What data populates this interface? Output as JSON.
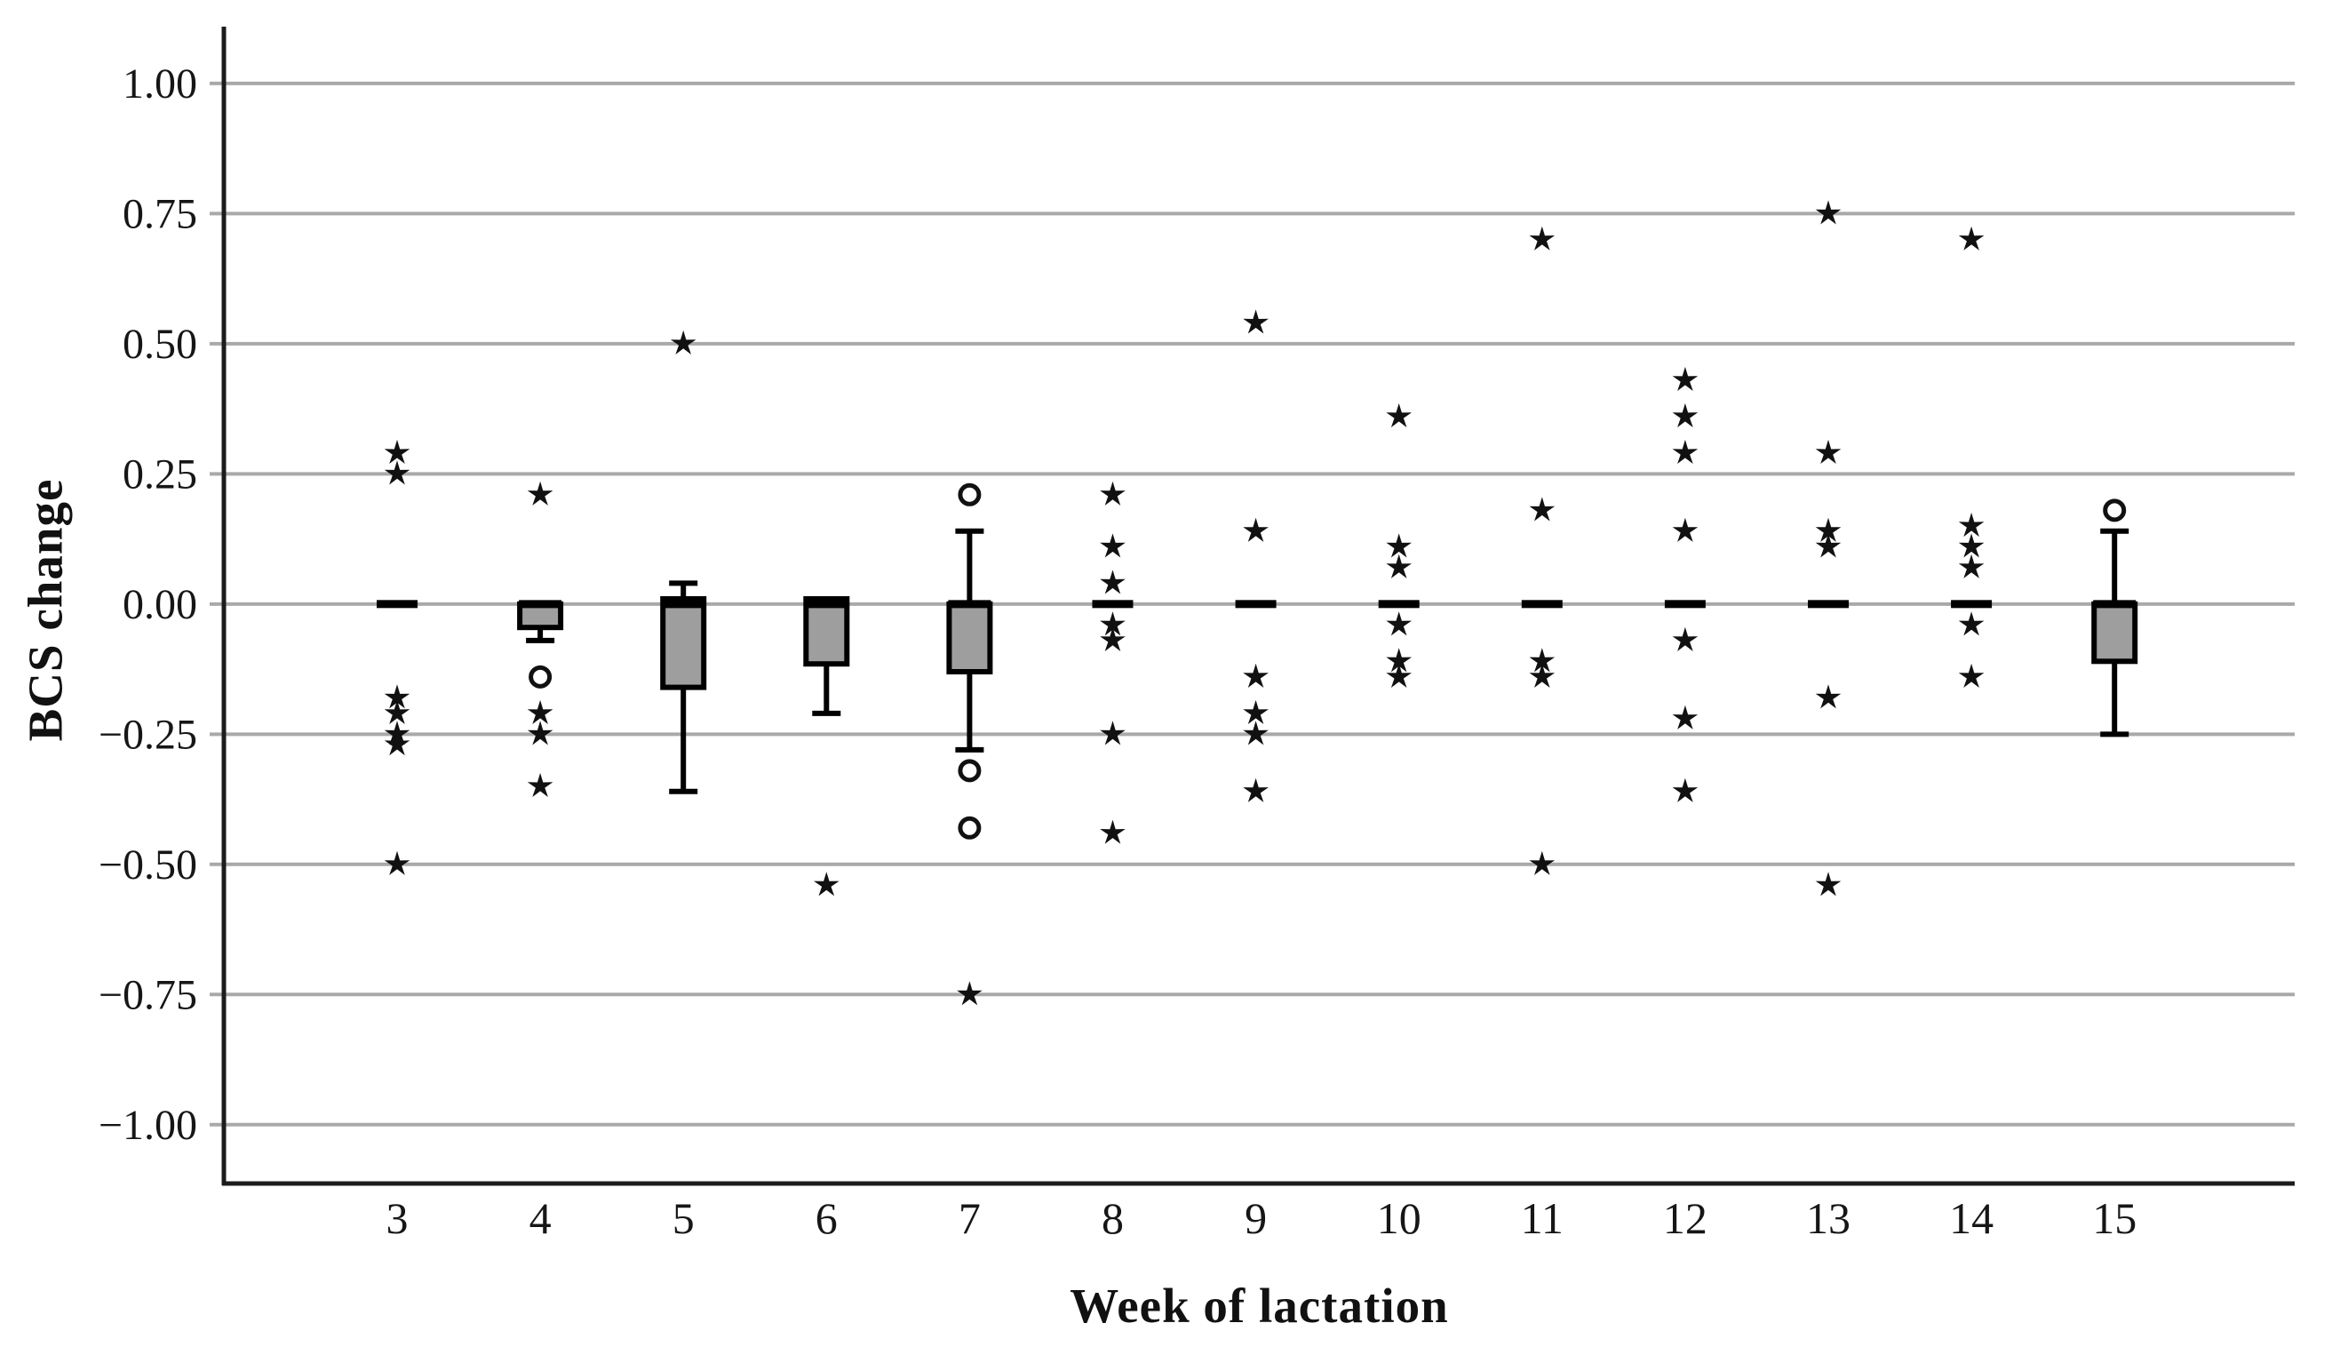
{
  "chart_data": {
    "type": "box",
    "title": "",
    "xlabel": "Week of lactation",
    "ylabel": "BCS change",
    "categories": [
      "3",
      "4",
      "5",
      "6",
      "7",
      "8",
      "9",
      "10",
      "11",
      "12",
      "13",
      "14",
      "15"
    ],
    "x_axis_weeks": [
      3,
      4,
      5,
      6,
      7,
      8,
      9,
      10,
      11,
      12,
      13,
      14,
      15
    ],
    "ylim": [
      -1.113,
      1.109
    ],
    "yticks": [
      {
        "value": 1.0,
        "label": "1.00"
      },
      {
        "value": 0.75,
        "label": "0.75"
      },
      {
        "value": 0.5,
        "label": "0.50"
      },
      {
        "value": 0.25,
        "label": "0.25"
      },
      {
        "value": 0.0,
        "label": "0.00"
      },
      {
        "value": -0.25,
        "label": "−0.25"
      },
      {
        "value": -0.5,
        "label": "−0.50"
      },
      {
        "value": -0.75,
        "label": "−0.75"
      },
      {
        "value": -1.0,
        "label": "−1.00"
      }
    ],
    "grid": true,
    "legend": "none",
    "boxes": [
      {
        "week": 3,
        "median": 0.0,
        "q1": 0.0,
        "q3": 0.0,
        "whisker_low": null,
        "whisker_high": null,
        "flat": true
      },
      {
        "week": 4,
        "median": 0.0,
        "q1": -0.045,
        "q3": 0.0,
        "whisker_low": -0.07,
        "whisker_high": null,
        "flat": false
      },
      {
        "week": 5,
        "median": 0.0,
        "q1": -0.16,
        "q3": 0.01,
        "whisker_low": -0.36,
        "whisker_high": 0.04,
        "flat": false
      },
      {
        "week": 6,
        "median": 0.0,
        "q1": -0.115,
        "q3": 0.01,
        "whisker_low": -0.21,
        "whisker_high": null,
        "flat": false
      },
      {
        "week": 7,
        "median": 0.0,
        "q1": -0.13,
        "q3": 0.0,
        "whisker_low": -0.28,
        "whisker_high": 0.14,
        "flat": false
      },
      {
        "week": 8,
        "median": 0.0,
        "q1": 0.0,
        "q3": 0.0,
        "whisker_low": null,
        "whisker_high": null,
        "flat": true
      },
      {
        "week": 9,
        "median": 0.0,
        "q1": 0.0,
        "q3": 0.0,
        "whisker_low": null,
        "whisker_high": null,
        "flat": true
      },
      {
        "week": 10,
        "median": 0.0,
        "q1": 0.0,
        "q3": 0.0,
        "whisker_low": null,
        "whisker_high": null,
        "flat": true
      },
      {
        "week": 11,
        "median": 0.0,
        "q1": 0.0,
        "q3": 0.0,
        "whisker_low": null,
        "whisker_high": null,
        "flat": true
      },
      {
        "week": 12,
        "median": 0.0,
        "q1": 0.0,
        "q3": 0.0,
        "whisker_low": null,
        "whisker_high": null,
        "flat": true
      },
      {
        "week": 13,
        "median": 0.0,
        "q1": 0.0,
        "q3": 0.0,
        "whisker_low": null,
        "whisker_high": null,
        "flat": true
      },
      {
        "week": 14,
        "median": 0.0,
        "q1": 0.0,
        "q3": 0.0,
        "whisker_low": null,
        "whisker_high": null,
        "flat": true
      },
      {
        "week": 15,
        "median": 0.0,
        "q1": -0.11,
        "q3": 0.0,
        "whisker_low": -0.25,
        "whisker_high": 0.14,
        "flat": false
      }
    ],
    "outliers": [
      {
        "week": 3,
        "value": 0.29,
        "marker": "asterisk"
      },
      {
        "week": 3,
        "value": 0.25,
        "marker": "asterisk"
      },
      {
        "week": 3,
        "value": -0.18,
        "marker": "asterisk"
      },
      {
        "week": 3,
        "value": -0.21,
        "marker": "asterisk"
      },
      {
        "week": 3,
        "value": -0.25,
        "marker": "asterisk"
      },
      {
        "week": 3,
        "value": -0.27,
        "marker": "asterisk"
      },
      {
        "week": 3,
        "value": -0.5,
        "marker": "asterisk"
      },
      {
        "week": 4,
        "value": 0.21,
        "marker": "asterisk"
      },
      {
        "week": 4,
        "value": -0.14,
        "marker": "circle"
      },
      {
        "week": 4,
        "value": -0.21,
        "marker": "asterisk"
      },
      {
        "week": 4,
        "value": -0.25,
        "marker": "asterisk"
      },
      {
        "week": 4,
        "value": -0.35,
        "marker": "asterisk"
      },
      {
        "week": 5,
        "value": 0.5,
        "marker": "asterisk"
      },
      {
        "week": 6,
        "value": -0.54,
        "marker": "asterisk"
      },
      {
        "week": 7,
        "value": 0.21,
        "marker": "circle"
      },
      {
        "week": 7,
        "value": -0.32,
        "marker": "circle"
      },
      {
        "week": 7,
        "value": -0.43,
        "marker": "circle"
      },
      {
        "week": 7,
        "value": -0.75,
        "marker": "asterisk"
      },
      {
        "week": 8,
        "value": 0.21,
        "marker": "asterisk"
      },
      {
        "week": 8,
        "value": 0.11,
        "marker": "asterisk"
      },
      {
        "week": 8,
        "value": 0.04,
        "marker": "asterisk"
      },
      {
        "week": 8,
        "value": -0.04,
        "marker": "asterisk"
      },
      {
        "week": 8,
        "value": -0.07,
        "marker": "asterisk"
      },
      {
        "week": 8,
        "value": -0.25,
        "marker": "asterisk"
      },
      {
        "week": 8,
        "value": -0.44,
        "marker": "asterisk"
      },
      {
        "week": 9,
        "value": 0.54,
        "marker": "asterisk"
      },
      {
        "week": 9,
        "value": 0.14,
        "marker": "asterisk"
      },
      {
        "week": 9,
        "value": -0.14,
        "marker": "asterisk"
      },
      {
        "week": 9,
        "value": -0.21,
        "marker": "asterisk"
      },
      {
        "week": 9,
        "value": -0.25,
        "marker": "asterisk"
      },
      {
        "week": 9,
        "value": -0.36,
        "marker": "asterisk"
      },
      {
        "week": 10,
        "value": 0.36,
        "marker": "asterisk"
      },
      {
        "week": 10,
        "value": 0.11,
        "marker": "asterisk"
      },
      {
        "week": 10,
        "value": 0.07,
        "marker": "asterisk"
      },
      {
        "week": 10,
        "value": -0.04,
        "marker": "asterisk"
      },
      {
        "week": 10,
        "value": -0.11,
        "marker": "asterisk"
      },
      {
        "week": 10,
        "value": -0.14,
        "marker": "asterisk"
      },
      {
        "week": 11,
        "value": 0.7,
        "marker": "asterisk"
      },
      {
        "week": 11,
        "value": 0.18,
        "marker": "asterisk"
      },
      {
        "week": 11,
        "value": -0.11,
        "marker": "asterisk"
      },
      {
        "week": 11,
        "value": -0.14,
        "marker": "asterisk"
      },
      {
        "week": 11,
        "value": -0.5,
        "marker": "asterisk"
      },
      {
        "week": 12,
        "value": 0.43,
        "marker": "asterisk"
      },
      {
        "week": 12,
        "value": 0.36,
        "marker": "asterisk"
      },
      {
        "week": 12,
        "value": 0.29,
        "marker": "asterisk"
      },
      {
        "week": 12,
        "value": 0.14,
        "marker": "asterisk"
      },
      {
        "week": 12,
        "value": -0.07,
        "marker": "asterisk"
      },
      {
        "week": 12,
        "value": -0.22,
        "marker": "asterisk"
      },
      {
        "week": 12,
        "value": -0.36,
        "marker": "asterisk"
      },
      {
        "week": 13,
        "value": 0.75,
        "marker": "asterisk"
      },
      {
        "week": 13,
        "value": 0.29,
        "marker": "asterisk"
      },
      {
        "week": 13,
        "value": 0.14,
        "marker": "asterisk"
      },
      {
        "week": 13,
        "value": 0.11,
        "marker": "asterisk"
      },
      {
        "week": 13,
        "value": -0.18,
        "marker": "asterisk"
      },
      {
        "week": 13,
        "value": -0.54,
        "marker": "asterisk"
      },
      {
        "week": 14,
        "value": 0.7,
        "marker": "asterisk"
      },
      {
        "week": 14,
        "value": 0.15,
        "marker": "asterisk"
      },
      {
        "week": 14,
        "value": 0.11,
        "marker": "asterisk"
      },
      {
        "week": 14,
        "value": 0.07,
        "marker": "asterisk"
      },
      {
        "week": 14,
        "value": -0.04,
        "marker": "asterisk"
      },
      {
        "week": 14,
        "value": -0.14,
        "marker": "asterisk"
      },
      {
        "week": 15,
        "value": 0.18,
        "marker": "circle"
      }
    ],
    "colors": {
      "box_fill": "#9e9e9e",
      "box_border": "#000000",
      "grid_color": "#a9a9a9",
      "axis_color": "#1c1c1c",
      "marker_color": "#111111",
      "background": "#ffffff"
    }
  }
}
